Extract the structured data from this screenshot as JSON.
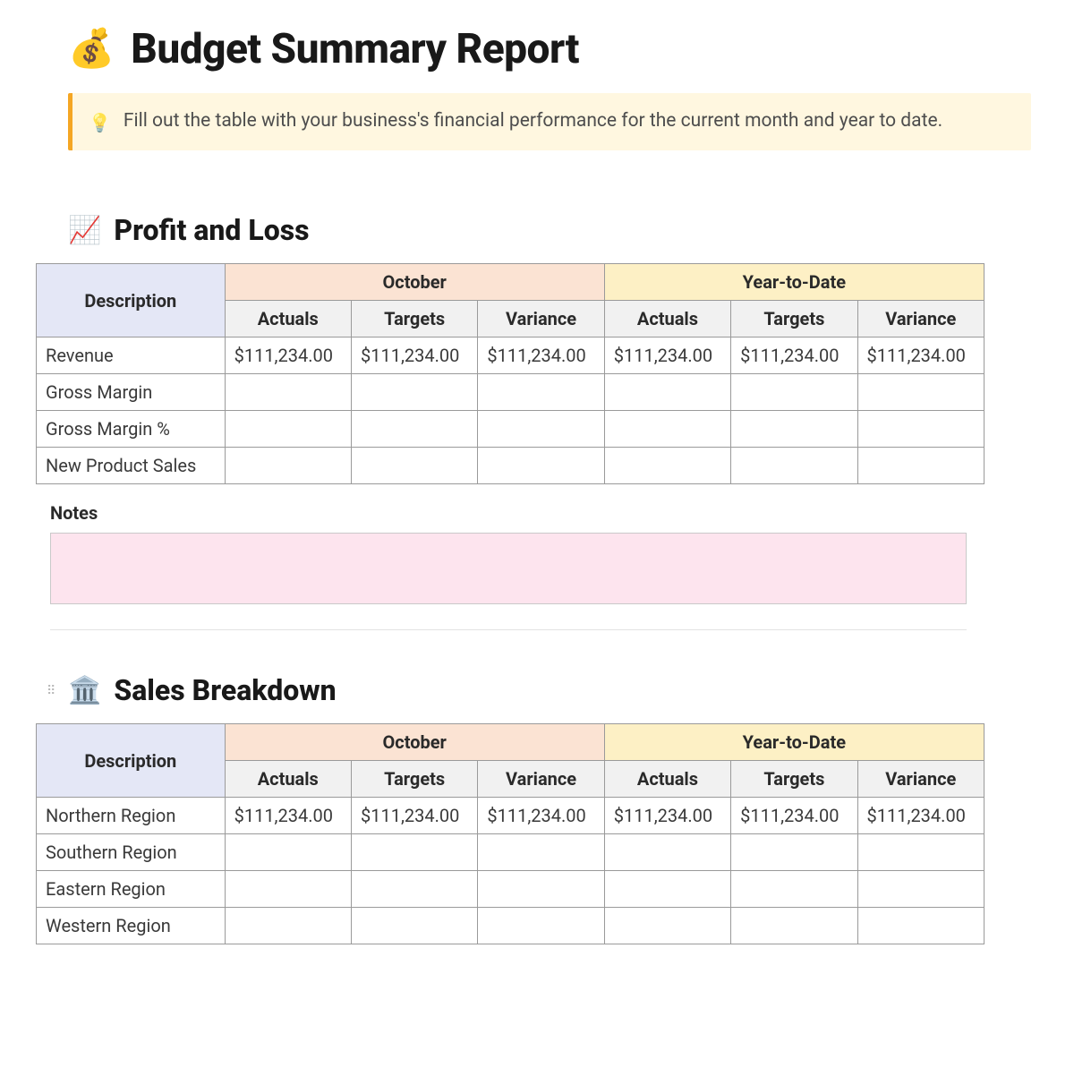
{
  "page": {
    "title_emoji": "💰",
    "title": "Budget Summary Report",
    "callout_emoji": "💡",
    "callout_text": "Fill out the table with your business's financial performance for the current month and year to date."
  },
  "colors": {
    "header_desc_bg": "#e4e7f6",
    "header_month_bg": "#fbe3d3",
    "header_ytd_bg": "#fdf0c5",
    "header_sub_bg": "#f1f1f1",
    "notes_bg": "#fde4ee",
    "callout_bg": "#fff7e0",
    "callout_border": "#f5a623",
    "border": "#9a9a9a"
  },
  "profit_loss": {
    "section_emoji": "📈",
    "section_title": "Profit and Loss",
    "columns": {
      "description": "Description",
      "period_a": "October",
      "period_b": "Year-to-Date",
      "sub": [
        "Actuals",
        "Targets",
        "Variance"
      ]
    },
    "rows": [
      {
        "label": "Revenue",
        "a_actuals": "$111,234.00",
        "a_targets": "$111,234.00",
        "a_variance": "$111,234.00",
        "b_actuals": "$111,234.00",
        "b_targets": "$111,234.00",
        "b_variance": "$111,234.00"
      },
      {
        "label": "Gross Margin",
        "a_actuals": "",
        "a_targets": "",
        "a_variance": "",
        "b_actuals": "",
        "b_targets": "",
        "b_variance": ""
      },
      {
        "label": "Gross Margin %",
        "a_actuals": "",
        "a_targets": "",
        "a_variance": "",
        "b_actuals": "",
        "b_targets": "",
        "b_variance": ""
      },
      {
        "label": "New Product Sales",
        "a_actuals": "",
        "a_targets": "",
        "a_variance": "",
        "b_actuals": "",
        "b_targets": "",
        "b_variance": ""
      }
    ],
    "notes_label": "Notes",
    "notes_value": ""
  },
  "sales": {
    "section_emoji": "🏛️",
    "section_title": "Sales Breakdown",
    "columns": {
      "description": "Description",
      "period_a": "October",
      "period_b": "Year-to-Date",
      "sub": [
        "Actuals",
        "Targets",
        "Variance"
      ]
    },
    "rows": [
      {
        "label": "Northern Region",
        "a_actuals": "$111,234.00",
        "a_targets": "$111,234.00",
        "a_variance": "$111,234.00",
        "b_actuals": "$111,234.00",
        "b_targets": "$111,234.00",
        "b_variance": "$111,234.00"
      },
      {
        "label": "Southern Region",
        "a_actuals": "",
        "a_targets": "",
        "a_variance": "",
        "b_actuals": "",
        "b_targets": "",
        "b_variance": ""
      },
      {
        "label": "Eastern Region",
        "a_actuals": "",
        "a_targets": "",
        "a_variance": "",
        "b_actuals": "",
        "b_targets": "",
        "b_variance": ""
      },
      {
        "label": "Western Region",
        "a_actuals": "",
        "a_targets": "",
        "a_variance": "",
        "b_actuals": "",
        "b_targets": "",
        "b_variance": ""
      }
    ]
  }
}
